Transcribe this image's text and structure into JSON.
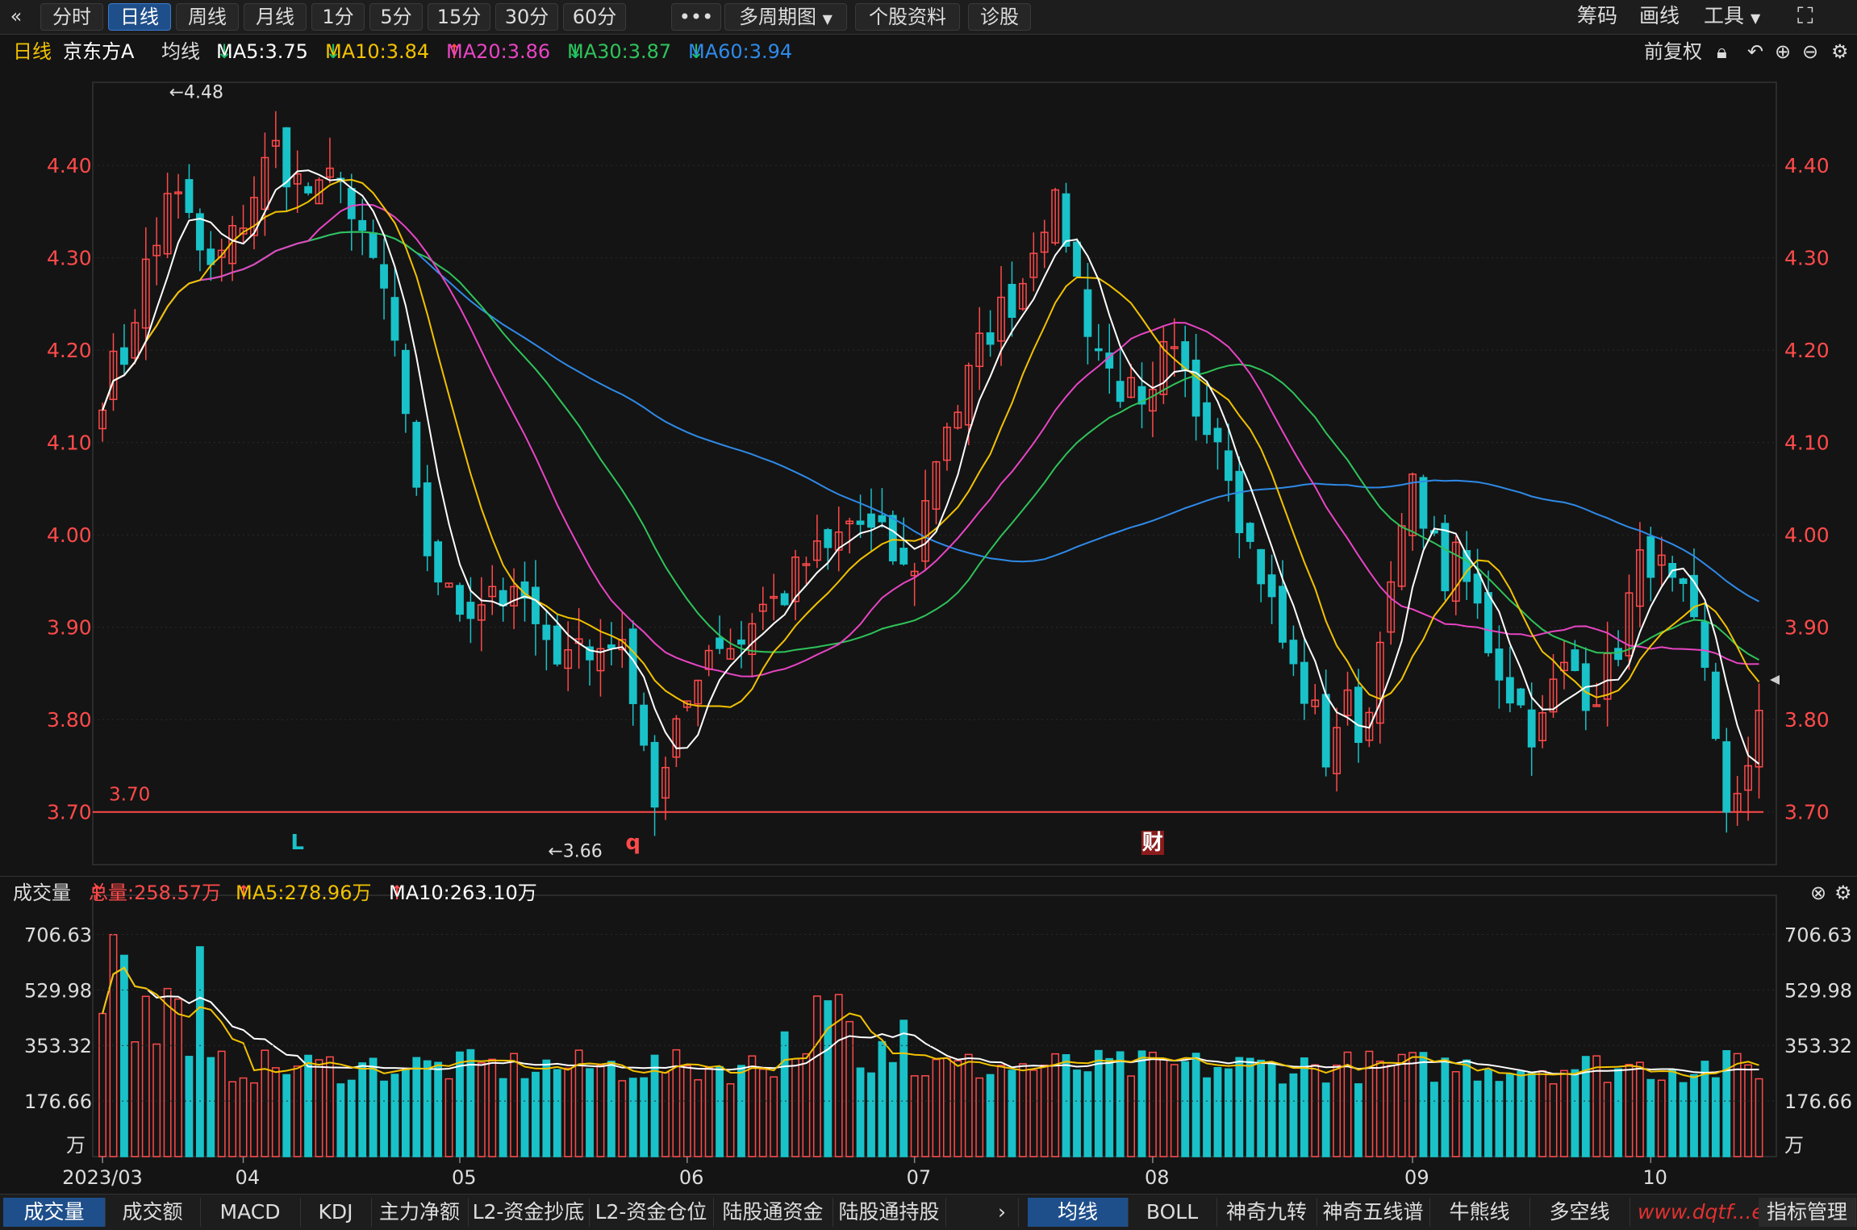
{
  "toolbar": {
    "back_icon": "«",
    "periods": [
      "分时",
      "日线",
      "周线",
      "月线",
      "1分",
      "5分",
      "15分",
      "30分",
      "60分"
    ],
    "active_index": 1,
    "more": "•••",
    "multi_period": "多周期图",
    "stock_info": "个股资料",
    "diagnose": "诊股",
    "chips": "筹码",
    "draw": "画线",
    "tools": "工具"
  },
  "info": {
    "period": "日线",
    "stock_name": "京东方A",
    "ma_label": "均线",
    "ma5": "MA5:3.75",
    "ma10": "MA10:3.84",
    "ma20": "MA20:3.86",
    "ma30": "MA30:3.87",
    "ma60": "MA60:3.94",
    "adjust": "前复权"
  },
  "volume_info": {
    "label": "成交量",
    "total": "总量:258.57万",
    "ma5": "MA5:278.96万",
    "ma10": "MA10:263.10万"
  },
  "bottom_tabs_left": [
    "成交量",
    "成交额",
    "MACD",
    "KDJ",
    "主力净额",
    "L2-资金抄底",
    "L2-资金仓位",
    "陆股通资金",
    "陆股通持股"
  ],
  "bottom_tabs_right": [
    "均线",
    "BOLL",
    "神奇九转",
    "神奇五线谱",
    "牛熊线",
    "多空线"
  ],
  "indicator_manage": "指标管理",
  "watermark": "www.dqtf...et",
  "colors": {
    "up": "#ff4a4a",
    "down": "#19c2c8",
    "ma5": "#ffffff",
    "ma10": "#f2c200",
    "ma20": "#e845c4",
    "ma30": "#2fc35a",
    "ma60": "#2f8ae8"
  },
  "chart_data": {
    "type": "candlestick",
    "price_ylim": [
      3.65,
      4.49
    ],
    "price_ticks": [
      "4.40",
      "4.30",
      "4.20",
      "4.10",
      "4.00",
      "3.90",
      "3.80",
      "3.70"
    ],
    "price_tick_values": [
      4.4,
      4.3,
      4.2,
      4.1,
      4.0,
      3.9,
      3.8,
      3.7
    ],
    "support_line": 3.7,
    "support_label": "3.70",
    "high_annotation": "←4.48",
    "low_annotation": "←3.66",
    "markers": [
      "L",
      "q",
      "财"
    ],
    "volume_ticks": [
      "706.63",
      "529.98",
      "353.32",
      "176.66"
    ],
    "volume_tick_values": [
      706.63,
      529.98,
      353.32,
      176.66
    ],
    "volume_unit": "万",
    "x_labels": [
      "2023/03",
      "04",
      "05",
      "06",
      "07",
      "08",
      "09",
      "10"
    ],
    "x_label_days": [
      0,
      13,
      33,
      54,
      75,
      97,
      121,
      143
    ],
    "num_days": 154,
    "anchors": [
      [
        0,
        4.16
      ],
      [
        3,
        4.2
      ],
      [
        5,
        4.29
      ],
      [
        6,
        4.28
      ],
      [
        8,
        4.38
      ],
      [
        11,
        4.33
      ],
      [
        13,
        4.28
      ],
      [
        16,
        4.32
      ],
      [
        19,
        4.38
      ],
      [
        21,
        4.42
      ],
      [
        24,
        4.38
      ],
      [
        27,
        4.36
      ],
      [
        29,
        4.41
      ],
      [
        31,
        4.32
      ],
      [
        34,
        4.28
      ],
      [
        36,
        4.2
      ],
      [
        37,
        4.12
      ],
      [
        39,
        4.0
      ],
      [
        41,
        3.96
      ],
      [
        43,
        3.92
      ],
      [
        46,
        3.93
      ],
      [
        48,
        3.95
      ],
      [
        50,
        3.92
      ],
      [
        52,
        3.93
      ],
      [
        54,
        3.86
      ],
      [
        55,
        3.88
      ],
      [
        58,
        3.89
      ],
      [
        60,
        3.86
      ],
      [
        62,
        3.9
      ],
      [
        64,
        3.86
      ],
      [
        66,
        3.82
      ],
      [
        67,
        3.7
      ],
      [
        69,
        3.74
      ],
      [
        71,
        3.8
      ],
      [
        73,
        3.86
      ],
      [
        75,
        3.89
      ],
      [
        78,
        3.88
      ],
      [
        80,
        3.92
      ],
      [
        83,
        3.93
      ],
      [
        86,
        3.97
      ],
      [
        89,
        3.98
      ],
      [
        92,
        4.02
      ],
      [
        94,
        4.0
      ],
      [
        96,
        3.99
      ],
      [
        98,
        3.96
      ],
      [
        99,
        3.95
      ],
      [
        101,
        4.04
      ],
      [
        103,
        4.12
      ],
      [
        105,
        4.14
      ],
      [
        107,
        4.19
      ],
      [
        109,
        4.23
      ],
      [
        111,
        4.25
      ],
      [
        113,
        4.28
      ],
      [
        114,
        4.32
      ],
      [
        116,
        4.36
      ],
      [
        118,
        4.33
      ],
      [
        120,
        4.25
      ],
      [
        123,
        4.18
      ],
      [
        126,
        4.15
      ],
      [
        128,
        4.11
      ],
      [
        130,
        4.19
      ],
      [
        132,
        4.18
      ],
      [
        134,
        4.14
      ],
      [
        136,
        4.13
      ],
      [
        138,
        4.08
      ],
      [
        140,
        4.0
      ],
      [
        142,
        3.96
      ],
      [
        144,
        3.9
      ],
      [
        146,
        3.85
      ],
      [
        148,
        3.82
      ],
      [
        150,
        3.76
      ],
      [
        152,
        3.82
      ],
      [
        155,
        3.78
      ],
      [
        156,
        3.9
      ],
      [
        158,
        3.93
      ],
      [
        160,
        4.05
      ],
      [
        162,
        4.03
      ],
      [
        164,
        3.95
      ],
      [
        166,
        3.97
      ],
      [
        168,
        3.93
      ],
      [
        170,
        3.88
      ],
      [
        172,
        3.84
      ],
      [
        174,
        3.81
      ],
      [
        176,
        3.78
      ],
      [
        178,
        3.84
      ],
      [
        180,
        3.86
      ],
      [
        182,
        3.83
      ],
      [
        184,
        3.84
      ],
      [
        186,
        3.89
      ],
      [
        188,
        3.96
      ],
      [
        190,
        3.98
      ],
      [
        192,
        3.94
      ],
      [
        194,
        3.92
      ],
      [
        196,
        3.86
      ],
      [
        198,
        3.77
      ],
      [
        199,
        3.7
      ],
      [
        201,
        3.76
      ],
      [
        203,
        3.79
      ]
    ]
  }
}
